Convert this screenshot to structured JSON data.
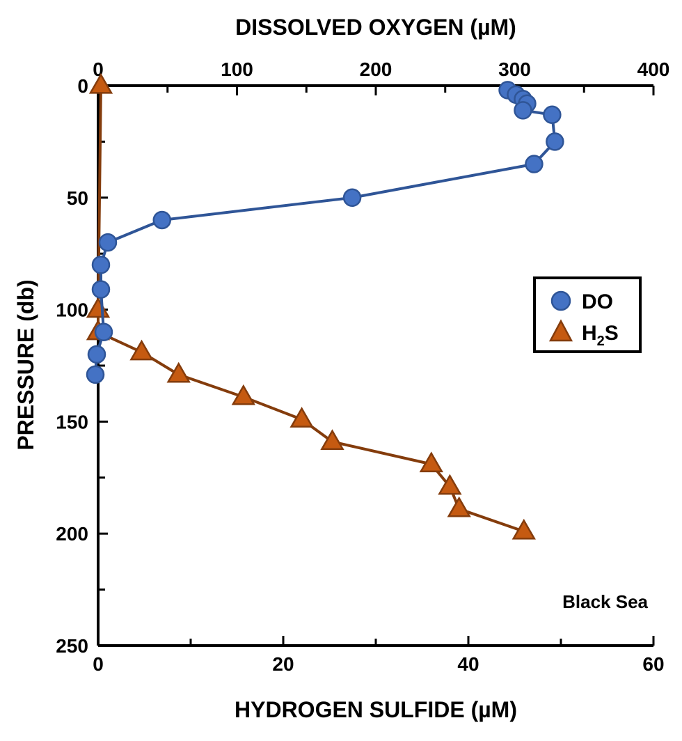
{
  "chart_data": {
    "type": "scatter",
    "annotation": "Black Sea",
    "y_axis": {
      "label": "PRESSURE (db)",
      "range": [
        0,
        250
      ],
      "inverted": true,
      "major_ticks": [
        0,
        50,
        100,
        150,
        200,
        250
      ],
      "minor_ticks": [
        25,
        75,
        125,
        175,
        225
      ],
      "tick_labels": [
        "0",
        "50",
        "100",
        "150",
        "200",
        "250"
      ]
    },
    "x_axis_top": {
      "label": "DISSOLVED OXYGEN (µM)",
      "range": [
        0,
        400
      ],
      "major_ticks": [
        0,
        100,
        200,
        300,
        400
      ],
      "minor_ticks": [
        50,
        150,
        250,
        350
      ],
      "tick_labels": [
        "0",
        "100",
        "200",
        "300",
        "400"
      ]
    },
    "x_axis_bottom": {
      "label": "HYDROGEN SULFIDE (µM)",
      "range": [
        0,
        60
      ],
      "major_ticks": [
        0,
        20,
        40,
        60
      ],
      "minor_ticks": [
        10,
        30,
        50
      ],
      "tick_labels": [
        "0",
        "20",
        "40",
        "60"
      ]
    },
    "legend": {
      "position": "right",
      "items": [
        {
          "label": "DO",
          "marker": "circle",
          "color": "#4472C4"
        },
        {
          "label": "H",
          "subscript": "2",
          "suffix": "S",
          "marker": "triangle",
          "color": "#C55A11"
        }
      ]
    },
    "series": [
      {
        "name": "DO",
        "x_axis": "top",
        "marker": "circle",
        "color": "#4472C4",
        "line_color": "#2F5597",
        "points": [
          {
            "x": 295,
            "y": 2
          },
          {
            "x": 301,
            "y": 4
          },
          {
            "x": 306,
            "y": 6
          },
          {
            "x": 309,
            "y": 8
          },
          {
            "x": 306,
            "y": 11
          },
          {
            "x": 327,
            "y": 13
          },
          {
            "x": 329,
            "y": 25
          },
          {
            "x": 314,
            "y": 35
          },
          {
            "x": 183,
            "y": 50
          },
          {
            "x": 46,
            "y": 60
          },
          {
            "x": 7,
            "y": 70
          },
          {
            "x": 2,
            "y": 80
          },
          {
            "x": 2,
            "y": 91
          },
          {
            "x": 4,
            "y": 110
          },
          {
            "x": -1,
            "y": 120
          },
          {
            "x": -2,
            "y": 129
          }
        ]
      },
      {
        "name": "H2S",
        "x_axis": "bottom",
        "marker": "triangle",
        "color": "#C55A11",
        "line_color": "#843C0C",
        "points": [
          {
            "x": 0.3,
            "y": 0
          },
          {
            "x": 0,
            "y": 100
          },
          {
            "x": 0,
            "y": 110
          },
          {
            "x": 4.7,
            "y": 119
          },
          {
            "x": 8.7,
            "y": 129
          },
          {
            "x": 15.7,
            "y": 139
          },
          {
            "x": 22.0,
            "y": 149
          },
          {
            "x": 25.3,
            "y": 159
          },
          {
            "x": 36.0,
            "y": 169
          },
          {
            "x": 38.0,
            "y": 179
          },
          {
            "x": 39.0,
            "y": 189
          },
          {
            "x": 46.0,
            "y": 199
          }
        ]
      }
    ]
  }
}
